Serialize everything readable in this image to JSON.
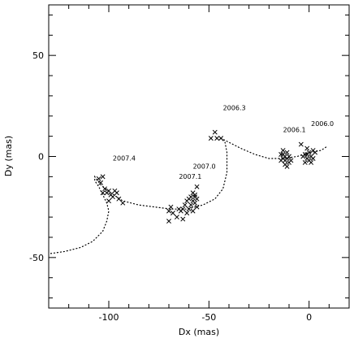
{
  "chart_data": {
    "type": "scatter",
    "title": "",
    "xlabel": "Dx (mas)",
    "ylabel": "Dy (mas)",
    "xlim": [
      -130,
      20
    ],
    "ylim": [
      -75,
      75
    ],
    "x_ticks": [
      -100,
      -50,
      0
    ],
    "y_ticks": [
      -50,
      0,
      50
    ],
    "x_tick_labels": [
      "-100",
      "-50",
      "0"
    ],
    "y_tick_labels": [
      "-50",
      "0",
      "50"
    ],
    "grid": false,
    "legend": "none",
    "marker": "x",
    "points": [
      [
        -4,
        6
      ],
      [
        -1,
        4
      ],
      [
        2,
        3
      ],
      [
        0,
        2
      ],
      [
        -2,
        1
      ],
      [
        1,
        0
      ],
      [
        -1,
        -1
      ],
      [
        -3,
        0
      ],
      [
        2,
        -1
      ],
      [
        0,
        -2
      ],
      [
        -2,
        -3
      ],
      [
        1,
        -3
      ],
      [
        -1,
        1
      ],
      [
        3,
        2
      ],
      [
        -13,
        3
      ],
      [
        -11,
        2
      ],
      [
        -14,
        1
      ],
      [
        -12,
        0
      ],
      [
        -10,
        0
      ],
      [
        -13,
        -1
      ],
      [
        -11,
        -1
      ],
      [
        -9,
        -2
      ],
      [
        -12,
        -2
      ],
      [
        -14,
        -2
      ],
      [
        -10,
        -3
      ],
      [
        -12,
        -4
      ],
      [
        -13,
        1
      ],
      [
        -11,
        -5
      ],
      [
        -47,
        12
      ],
      [
        -49,
        9
      ],
      [
        -46,
        9
      ],
      [
        -44,
        9
      ],
      [
        -56,
        -15
      ],
      [
        -58,
        -18
      ],
      [
        -57,
        -19
      ],
      [
        -59,
        -20
      ],
      [
        -56,
        -21
      ],
      [
        -60,
        -21
      ],
      [
        -58,
        -22
      ],
      [
        -61,
        -22
      ],
      [
        -57,
        -23
      ],
      [
        -59,
        -24
      ],
      [
        -62,
        -24
      ],
      [
        -56,
        -25
      ],
      [
        -60,
        -26
      ],
      [
        -63,
        -26
      ],
      [
        -58,
        -27
      ],
      [
        -61,
        -28
      ],
      [
        -65,
        -26
      ],
      [
        -64,
        -27
      ],
      [
        -69,
        -25
      ],
      [
        -70,
        -27
      ],
      [
        -68,
        -28
      ],
      [
        -66,
        -30
      ],
      [
        -70,
        -32
      ],
      [
        -63,
        -31
      ],
      [
        -57,
        -20
      ],
      [
        -105,
        -11
      ],
      [
        -103,
        -10
      ],
      [
        -104,
        -13
      ],
      [
        -102,
        -16
      ],
      [
        -101,
        -18
      ],
      [
        -103,
        -18
      ],
      [
        -99,
        -19
      ],
      [
        -97,
        -17
      ],
      [
        -96,
        -18
      ],
      [
        -98,
        -20
      ],
      [
        -95,
        -21
      ],
      [
        -93,
        -23
      ],
      [
        -100,
        -17
      ],
      [
        -100,
        -22
      ]
    ],
    "trajectory": [
      [
        -129,
        -48
      ],
      [
        -122,
        -47
      ],
      [
        -114,
        -45
      ],
      [
        -108,
        -42
      ],
      [
        -103,
        -37
      ],
      [
        -101,
        -32
      ],
      [
        -100,
        -27
      ],
      [
        -101,
        -23
      ],
      [
        -103,
        -19
      ],
      [
        -105,
        -15
      ],
      [
        -107,
        -12
      ],
      [
        -107,
        -10
      ],
      [
        -104,
        -14
      ],
      [
        -99,
        -18
      ],
      [
        -93,
        -22
      ],
      [
        -85,
        -24
      ],
      [
        -77,
        -25
      ],
      [
        -69,
        -26
      ],
      [
        -61,
        -26
      ],
      [
        -53,
        -24
      ],
      [
        -47,
        -21
      ],
      [
        -43,
        -16
      ],
      [
        -41,
        -8
      ],
      [
        -41,
        2
      ],
      [
        -42,
        7
      ],
      [
        -44,
        9
      ],
      [
        -40,
        7
      ],
      [
        -34,
        4
      ],
      [
        -27,
        1
      ],
      [
        -20,
        -1
      ],
      [
        -13,
        -1
      ],
      [
        -6,
        0
      ],
      [
        1,
        2
      ],
      [
        6,
        3
      ],
      [
        9,
        5
      ]
    ],
    "annotations": [
      {
        "text": "2006.0",
        "x": 1,
        "y": 15
      },
      {
        "text": "2006.1",
        "x": -13,
        "y": 12
      },
      {
        "text": "2006.3",
        "x": -43,
        "y": 23
      },
      {
        "text": "2007.0",
        "x": -58,
        "y": -6
      },
      {
        "text": "2007.1",
        "x": -65,
        "y": -11
      },
      {
        "text": "2007.4",
        "x": -98,
        "y": -2
      }
    ]
  }
}
